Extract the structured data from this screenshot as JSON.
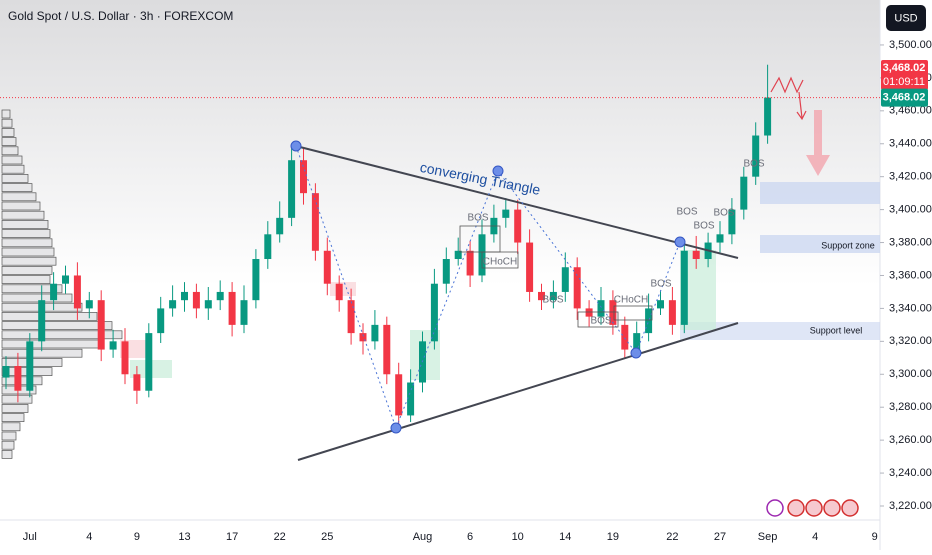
{
  "chart_data": {
    "type": "candlestick",
    "title": "Gold Spot / U.S. Dollar · 3h · FOREXCOM",
    "currency": "USD",
    "categories": [
      null,
      null,
      "Jul",
      null,
      null,
      null,
      null,
      "4",
      null,
      null,
      null,
      "9",
      null,
      null,
      null,
      "13",
      null,
      null,
      null,
      "17",
      null,
      null,
      null,
      "22",
      null,
      null,
      null,
      "25",
      null,
      null,
      null,
      null,
      null,
      null,
      null,
      "Aug",
      null,
      null,
      null,
      "6",
      null,
      null,
      null,
      "10",
      null,
      null,
      null,
      "14",
      null,
      null,
      null,
      "19",
      null,
      null,
      null,
      null,
      "22",
      null,
      null,
      null,
      "27",
      null,
      null,
      null,
      "Sep",
      null,
      null,
      null,
      "4",
      null,
      null,
      null,
      null,
      "9"
    ],
    "open": [
      3298,
      3305,
      3290,
      3320,
      3345,
      3355,
      3360,
      3340,
      3345,
      3315,
      3320,
      3300,
      3290,
      3325,
      3340,
      3345,
      3350,
      3340,
      3345,
      3350,
      3330,
      3345,
      3370,
      3385,
      3395,
      3430,
      3410,
      3375,
      3355,
      3345,
      3325,
      3320,
      3330,
      3300,
      3275,
      3295,
      3320,
      3355,
      3370,
      3375,
      3360,
      3385,
      3395,
      3400,
      3380,
      3350,
      3345,
      3350,
      3365,
      3340,
      3335,
      3345,
      3330,
      3315,
      3325,
      3340,
      3345,
      3330,
      3375,
      3370,
      3380,
      3385,
      3400,
      3420,
      3445,
      null,
      null,
      null,
      null,
      null,
      null,
      null,
      null,
      null
    ],
    "high": [
      3311,
      3313,
      3325,
      3354,
      3362,
      3366,
      3368,
      3350,
      3351,
      3327,
      3328,
      3305,
      3331,
      3347,
      3354,
      3356,
      3355,
      3353,
      3357,
      3356,
      3354,
      3376,
      3393,
      3405,
      3439,
      3437,
      3416,
      3383,
      3360,
      3352,
      3331,
      3339,
      3335,
      3307,
      3303,
      3326,
      3364,
      3377,
      3383,
      3381,
      3394,
      3403,
      3407,
      3406,
      3388,
      3355,
      3357,
      3374,
      3371,
      3345,
      3353,
      3351,
      3335,
      3332,
      3349,
      3351,
      3353,
      3382,
      3384,
      3386,
      3393,
      3407,
      3426,
      3453,
      3488,
      null,
      null,
      null,
      null,
      null,
      null,
      null,
      null,
      null
    ],
    "low": [
      3291,
      3283,
      3286,
      3314,
      3339,
      3349,
      3333,
      3334,
      3308,
      3310,
      3294,
      3282,
      3286,
      3319,
      3335,
      3338,
      3334,
      3333,
      3339,
      3323,
      3325,
      3340,
      3364,
      3380,
      3390,
      3403,
      3369,
      3348,
      3338,
      3318,
      3312,
      3315,
      3294,
      3269,
      3271,
      3289,
      3315,
      3349,
      3366,
      3353,
      3356,
      3380,
      3389,
      3373,
      3344,
      3339,
      3340,
      3344,
      3333,
      3329,
      3330,
      3324,
      3310,
      3311,
      3320,
      3336,
      3324,
      3325,
      3364,
      3365,
      3374,
      3379,
      3394,
      3415,
      3440,
      null,
      null,
      null,
      null,
      null,
      null,
      null,
      null,
      null
    ],
    "close": [
      3305,
      3290,
      3320,
      3345,
      3355,
      3360,
      3340,
      3345,
      3315,
      3320,
      3300,
      3290,
      3325,
      3340,
      3345,
      3350,
      3340,
      3345,
      3350,
      3330,
      3345,
      3370,
      3385,
      3395,
      3430,
      3410,
      3375,
      3355,
      3345,
      3325,
      3320,
      3330,
      3300,
      3275,
      3295,
      3320,
      3355,
      3370,
      3375,
      3360,
      3385,
      3395,
      3400,
      3380,
      3350,
      3345,
      3350,
      3365,
      3340,
      3335,
      3345,
      3330,
      3315,
      3325,
      3340,
      3345,
      3330,
      3375,
      3370,
      3380,
      3385,
      3400,
      3420,
      3445,
      3468.02,
      null,
      null,
      null,
      null,
      null,
      null,
      null,
      null,
      null
    ],
    "up_color": "#089981",
    "down_color": "#f23645",
    "ylim": [
      3211.5,
      3527.3
    ],
    "yticks": [
      {
        "value": 3220,
        "label": "3,220.00"
      },
      {
        "value": 3240,
        "label": "3,240.00"
      },
      {
        "value": 3260,
        "label": "3,260.00"
      },
      {
        "value": 3280,
        "label": "3,280.00"
      },
      {
        "value": 3300,
        "label": "3,300.00"
      },
      {
        "value": 3320,
        "label": "3,320.00"
      },
      {
        "value": 3340,
        "label": "3,340.00"
      },
      {
        "value": 3360,
        "label": "3,360.00"
      },
      {
        "value": 3380,
        "label": "3,380.00"
      },
      {
        "value": 3400,
        "label": "3,400.00"
      },
      {
        "value": 3420,
        "label": "3,420.00"
      },
      {
        "value": 3440,
        "label": "3,440.00"
      },
      {
        "value": 3460,
        "label": "3,460.00"
      },
      {
        "value": 3480,
        "label": "3,480.00"
      },
      {
        "value": 3500,
        "label": "3,500.00"
      }
    ],
    "last_price": {
      "value": 3468.02,
      "label": "3,468.02"
    },
    "countdown": "01:09:11",
    "pattern_label": "converging Triangle",
    "structure_labels": [
      "BOS",
      "CHoCH",
      "BOS",
      "BOS",
      "CHoCH",
      "BOS",
      "BOS",
      "BOS",
      "BOS",
      "BOS"
    ],
    "zone_labels": [
      "Support zone",
      "Support level"
    ]
  }
}
